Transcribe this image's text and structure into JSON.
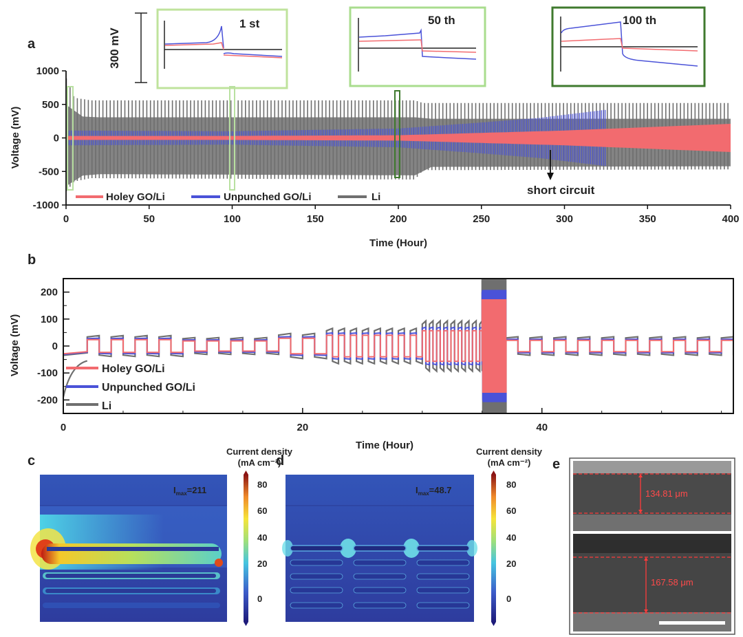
{
  "panel_labels": {
    "a": "a",
    "b": "b",
    "c": "c",
    "d": "d",
    "e": "e"
  },
  "colors": {
    "holey": "#f26b6f",
    "unpunched": "#4a52d8",
    "li": "#6f6f6f"
  },
  "chart_data": [
    {
      "id": "a",
      "type": "line",
      "xlabel": "Time (Hour)",
      "ylabel": "Voltage (mV)",
      "xlim": [
        0,
        400
      ],
      "ylim": [
        -1000,
        1000
      ],
      "xticks": [
        0,
        50,
        100,
        150,
        200,
        250,
        300,
        350,
        400
      ],
      "yticks": [
        -1000,
        -500,
        0,
        500,
        1000
      ],
      "legend": [
        "Holey GO/Li",
        "Unpunched GO/Li",
        "Li"
      ],
      "legend_position": "bottom-left",
      "series": [
        {
          "name": "Holey GO/Li",
          "envelope_time": [
            0,
            100,
            200,
            300,
            400
          ],
          "envelope_mV": [
            30,
            30,
            40,
            110,
            210
          ]
        },
        {
          "name": "Unpunched GO/Li",
          "envelope_time": [
            0,
            100,
            200,
            250,
            285,
            325
          ],
          "envelope_mV": [
            110,
            100,
            140,
            230,
            300,
            420
          ]
        },
        {
          "name": "Li",
          "envelope_time": [
            0,
            5,
            15,
            210,
            215,
            400
          ],
          "envelope_top_mV": [
            900,
            600,
            560,
            560,
            520,
            520
          ],
          "envelope_bottom_mV": [
            -800,
            -650,
            -600,
            -620,
            -480,
            -470
          ]
        }
      ],
      "annotations": [
        {
          "text": "short circuit",
          "x": 291
        },
        {
          "text": "300 mV"
        },
        {
          "text": "1 st",
          "x": 100
        },
        {
          "text": "50 th",
          "x": 199
        },
        {
          "text": "100 th",
          "x": 3
        }
      ]
    },
    {
      "id": "b",
      "type": "line",
      "xlabel": "Time (Hour)",
      "ylabel": "Voltage (mV)",
      "xlim": [
        0,
        56
      ],
      "ylim": [
        -250,
        250
      ],
      "xticks": [
        0,
        20,
        40
      ],
      "yticks": [
        -200,
        -100,
        0,
        100,
        200
      ],
      "legend": [
        "Holey GO/Li",
        "Unpunched GO/Li",
        "Li"
      ],
      "legend_position": "bottom-left",
      "rate_steps": [
        {
          "t_start": 2,
          "t_end": 10,
          "amplitude_mV": 25
        },
        {
          "t_start": 10,
          "t_end": 18,
          "amplitude_mV": 20
        },
        {
          "t_start": 18,
          "t_end": 22,
          "amplitude_mV": 30
        },
        {
          "t_start": 22,
          "t_end": 30,
          "amplitude_mV": 42
        },
        {
          "t_start": 30,
          "t_end": 35,
          "amplitude_mV": 60
        },
        {
          "t_start": 35,
          "t_end": 37,
          "amplitude_mV": 180
        },
        {
          "t_start": 37,
          "t_end": 56,
          "amplitude_mV": 22
        }
      ]
    }
  ],
  "panel_c": {
    "colorbar_title": "Current density",
    "colorbar_unit": "(mA cm⁻²)",
    "imax_label": "I",
    "imax_sub": "max",
    "imax_value": "=211",
    "colorbar_ticks": [
      "80",
      "60",
      "40",
      "20",
      "0"
    ]
  },
  "panel_d": {
    "colorbar_title": "Current density",
    "colorbar_unit": "(mA cm⁻²)",
    "imax_label": "I",
    "imax_sub": "max",
    "imax_value": "=48.7",
    "colorbar_ticks": [
      "80",
      "60",
      "40",
      "20",
      "0"
    ]
  },
  "panel_e": {
    "top_thickness": "134.81 μm",
    "bottom_thickness": "167.58 μm"
  }
}
